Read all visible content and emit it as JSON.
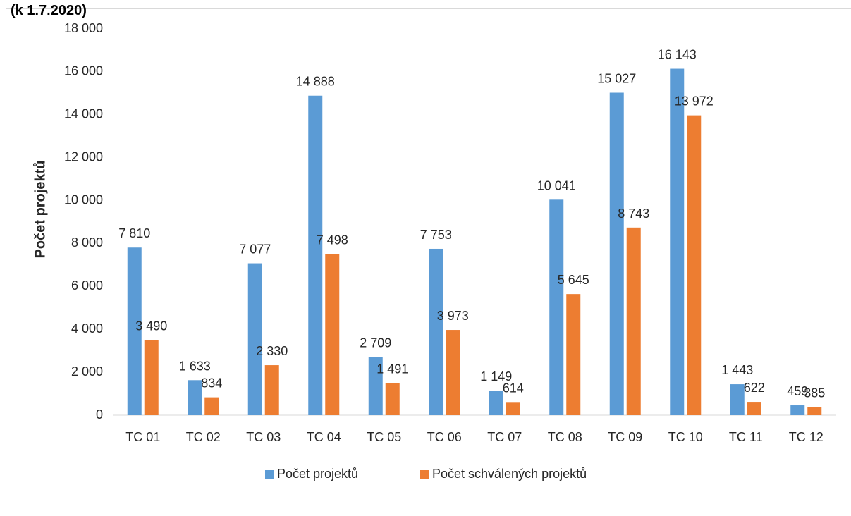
{
  "header": {
    "partial_title": "(k 1.7.2020)"
  },
  "chart_data": {
    "type": "bar",
    "title": "",
    "xlabel": "",
    "ylabel": "Počet projektů",
    "ylim": [
      0,
      18000
    ],
    "yticks": [
      0,
      2000,
      4000,
      6000,
      8000,
      10000,
      12000,
      14000,
      16000,
      18000
    ],
    "ytick_labels": [
      "0",
      "2 000",
      "4 000",
      "6 000",
      "8 000",
      "10 000",
      "12 000",
      "14 000",
      "16 000",
      "18 000"
    ],
    "grid": false,
    "legend_position": "bottom",
    "categories": [
      "TC 01",
      "TC 02",
      "TC 03",
      "TC 04",
      "TC 05",
      "TC 06",
      "TC 07",
      "TC 08",
      "TC 09",
      "TC 10",
      "TC 11",
      "TC 12"
    ],
    "series": [
      {
        "name": "Počet projektů",
        "color": "#5b9bd5",
        "values": [
          7810,
          1633,
          7077,
          14888,
          2709,
          7753,
          1149,
          10041,
          15027,
          16143,
          1443,
          459
        ],
        "labels": [
          "7 810",
          "1 633",
          "7 077",
          "14 888",
          "2 709",
          "7 753",
          "1 149",
          "10 041",
          "15 027",
          "16 143",
          "1 443",
          "459"
        ]
      },
      {
        "name": "Počet schválených projektů",
        "color": "#ed7d31",
        "values": [
          3490,
          834,
          2330,
          7498,
          1491,
          3973,
          614,
          5645,
          8743,
          13972,
          622,
          385
        ],
        "labels": [
          "3 490",
          "834",
          "2 330",
          "7 498",
          "1 491",
          "3 973",
          "614",
          "5 645",
          "8 743",
          "13 972",
          "622",
          "385"
        ]
      }
    ]
  }
}
